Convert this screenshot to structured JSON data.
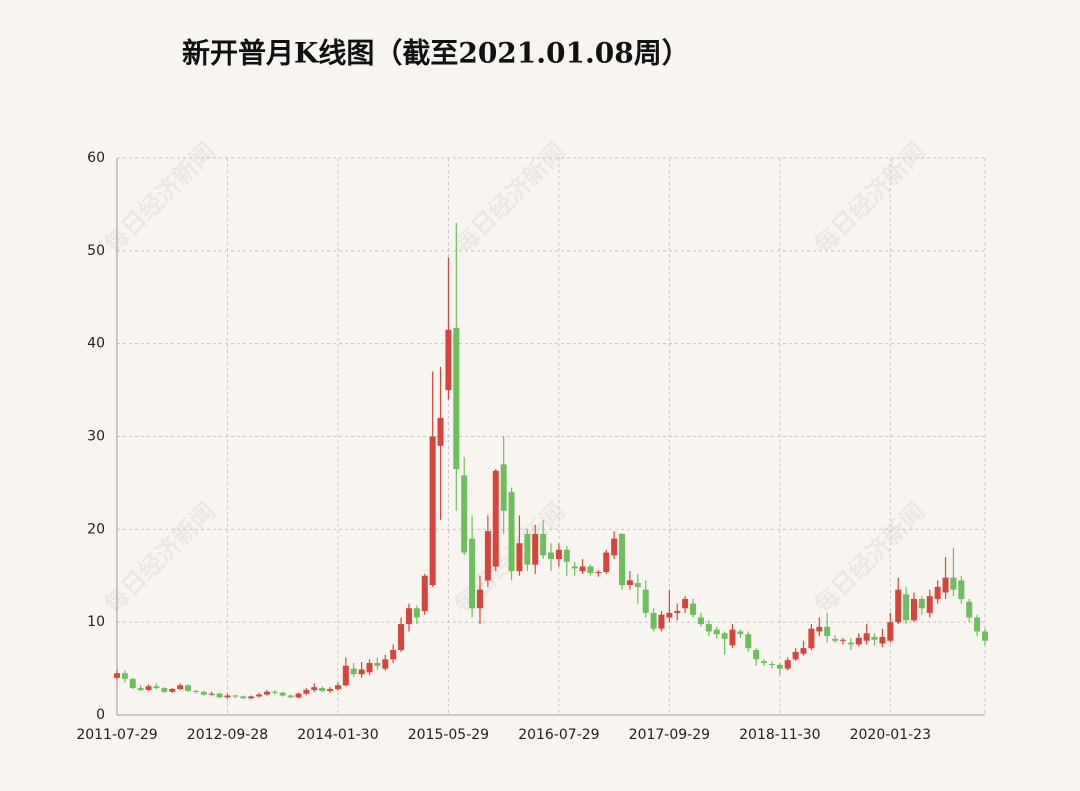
{
  "chart_data": {
    "type": "candlestick",
    "title": "新开普月K线图（截至2021.01.08周）",
    "watermark": "每日经济新闻",
    "categories": [
      "2011-07-29",
      null,
      null,
      null,
      null,
      null,
      null,
      null,
      null,
      null,
      null,
      null,
      null,
      null,
      "2012-09-28",
      null,
      null,
      null,
      null,
      null,
      null,
      null,
      null,
      null,
      null,
      null,
      null,
      null,
      "2014-01-30",
      null,
      null,
      null,
      null,
      null,
      null,
      null,
      null,
      null,
      null,
      null,
      null,
      null,
      "2015-05-29",
      null,
      null,
      null,
      null,
      null,
      null,
      null,
      null,
      null,
      null,
      null,
      null,
      null,
      "2016-07-29",
      null,
      null,
      null,
      null,
      null,
      null,
      null,
      null,
      null,
      null,
      null,
      null,
      null,
      "2017-09-29",
      null,
      null,
      null,
      null,
      null,
      null,
      null,
      null,
      null,
      null,
      null,
      null,
      null,
      "2018-11-30",
      null,
      null,
      null,
      null,
      null,
      null,
      null,
      null,
      null,
      null,
      null,
      null,
      null,
      "2020-01-23",
      null,
      null,
      null,
      null,
      null,
      null,
      null,
      null,
      null,
      null,
      null,
      null
    ],
    "open": [
      4.0,
      4.5,
      3.9,
      2.9,
      2.7,
      3.1,
      2.9,
      2.5,
      2.8,
      3.2,
      2.6,
      2.5,
      2.2,
      2.3,
      1.9,
      2.1,
      2.0,
      1.8,
      2.0,
      2.2,
      2.5,
      2.4,
      2.1,
      1.9,
      2.3,
      2.7,
      2.9,
      2.6,
      2.8,
      3.2,
      5.0,
      4.4,
      4.6,
      5.6,
      5.0,
      6.0,
      7.0,
      9.8,
      11.5,
      11.2,
      14.0,
      29.0,
      35.0,
      41.7,
      25.8,
      19.0,
      11.5,
      14.5,
      16.0,
      27.0,
      24.0,
      15.5,
      19.5,
      16.2,
      19.5,
      17.5,
      16.8,
      17.8,
      16.0,
      15.5,
      16.0,
      15.3,
      15.4,
      17.2,
      19.5,
      14.0,
      14.2,
      13.5,
      11.0,
      9.3,
      10.5,
      11.0,
      11.5,
      12.0,
      10.5,
      9.8,
      9.2,
      8.8,
      7.5,
      9.0,
      8.7,
      7.0,
      5.8,
      5.5,
      5.4,
      5.0,
      6.0,
      6.6,
      7.2,
      9.0,
      9.5,
      8.2,
      8.0,
      7.8,
      7.6,
      8.0,
      8.4,
      7.7,
      8.0,
      10.0,
      13.0,
      10.2,
      12.5,
      11.0,
      12.5,
      13.2,
      14.8,
      14.5,
      12.2,
      10.5,
      9.0
    ],
    "close": [
      4.5,
      3.9,
      2.9,
      2.7,
      3.1,
      2.9,
      2.5,
      2.8,
      3.2,
      2.6,
      2.5,
      2.2,
      2.3,
      1.9,
      2.1,
      2.0,
      1.8,
      2.0,
      2.2,
      2.5,
      2.4,
      2.1,
      1.9,
      2.3,
      2.7,
      3.0,
      2.6,
      2.8,
      3.2,
      5.3,
      4.4,
      4.9,
      5.6,
      5.3,
      6.0,
      7.0,
      9.8,
      11.5,
      10.5,
      15.0,
      30.0,
      32.0,
      41.5,
      26.5,
      17.5,
      11.5,
      13.5,
      19.8,
      26.3,
      22.0,
      15.5,
      18.5,
      16.2,
      19.5,
      17.2,
      16.8,
      17.8,
      16.5,
      15.8,
      16.0,
      15.3,
      15.4,
      17.5,
      19.0,
      14.0,
      14.5,
      13.8,
      11.0,
      9.3,
      10.8,
      11.0,
      11.2,
      12.5,
      10.8,
      9.8,
      9.0,
      8.7,
      8.2,
      9.2,
      8.7,
      7.2,
      6.0,
      5.6,
      5.4,
      5.0,
      5.9,
      6.8,
      7.2,
      9.3,
      9.5,
      8.5,
      8.0,
      8.1,
      7.6,
      8.3,
      8.8,
      8.1,
      8.4,
      10.0,
      13.5,
      10.2,
      12.5,
      11.5,
      12.8,
      13.8,
      14.8,
      13.5,
      12.5,
      10.5,
      9.0,
      8.0
    ],
    "low": [
      3.8,
      3.5,
      2.8,
      2.6,
      2.6,
      2.8,
      2.4,
      2.4,
      2.7,
      2.5,
      2.3,
      2.1,
      2.1,
      1.8,
      1.8,
      1.8,
      1.7,
      1.7,
      1.9,
      2.1,
      2.2,
      2.0,
      1.8,
      1.8,
      2.2,
      2.5,
      2.5,
      2.4,
      2.6,
      3.1,
      4.1,
      4.0,
      4.3,
      4.9,
      4.8,
      5.6,
      6.8,
      9.0,
      9.8,
      10.8,
      13.8,
      21.0,
      34.0,
      22.0,
      17.2,
      10.5,
      9.8,
      13.8,
      15.5,
      19.5,
      14.5,
      15.0,
      15.5,
      15.2,
      16.8,
      15.5,
      16.0,
      15.0,
      15.0,
      15.2,
      15.0,
      14.9,
      15.2,
      16.8,
      13.5,
      13.5,
      12.0,
      10.5,
      9.0,
      9.0,
      10.0,
      10.2,
      11.0,
      10.5,
      9.5,
      8.5,
      8.2,
      6.5,
      7.2,
      8.3,
      6.8,
      5.3,
      5.3,
      5.0,
      4.3,
      4.8,
      5.8,
      6.4,
      7.0,
      8.5,
      7.8,
      7.8,
      7.6,
      7.0,
      7.4,
      7.6,
      7.5,
      7.3,
      7.8,
      9.8,
      9.8,
      10.0,
      10.8,
      10.5,
      12.0,
      12.5,
      12.8,
      12.0,
      10.0,
      8.5,
      7.5
    ],
    "high": [
      4.8,
      4.8,
      4.0,
      3.2,
      3.3,
      3.4,
      3.0,
      2.9,
      3.4,
      3.3,
      2.7,
      2.6,
      2.5,
      2.4,
      2.3,
      2.2,
      2.1,
      2.1,
      2.4,
      2.7,
      2.7,
      2.5,
      2.2,
      2.4,
      2.9,
      3.4,
      3.1,
      3.0,
      3.5,
      6.2,
      5.6,
      5.7,
      6.0,
      6.2,
      6.5,
      7.6,
      10.5,
      12.0,
      11.8,
      15.2,
      37.0,
      37.5,
      49.3,
      53.0,
      27.8,
      21.5,
      15.0,
      21.5,
      26.5,
      30.0,
      24.5,
      21.5,
      20.0,
      20.5,
      21.0,
      18.5,
      18.5,
      18.2,
      16.5,
      16.8,
      16.2,
      15.6,
      17.8,
      19.8,
      19.6,
      15.5,
      15.2,
      14.5,
      11.5,
      11.2,
      13.5,
      12.0,
      12.8,
      12.5,
      11.0,
      10.2,
      9.5,
      9.0,
      9.8,
      9.2,
      9.0,
      7.2,
      6.0,
      5.8,
      5.6,
      6.2,
      7.2,
      8.0,
      9.8,
      10.5,
      11.0,
      8.6,
      8.3,
      8.3,
      8.8,
      9.8,
      8.8,
      9.3,
      11.0,
      14.8,
      13.8,
      13.2,
      12.8,
      13.5,
      14.5,
      17.0,
      18.0,
      15.0,
      12.5,
      10.8,
      9.3
    ],
    "up_color": "#d8443c",
    "down_color": "#6cbf5c",
    "ylim": [
      0,
      60
    ],
    "yticks": [
      0,
      10,
      20,
      30,
      40,
      50,
      60
    ],
    "grid": true
  }
}
